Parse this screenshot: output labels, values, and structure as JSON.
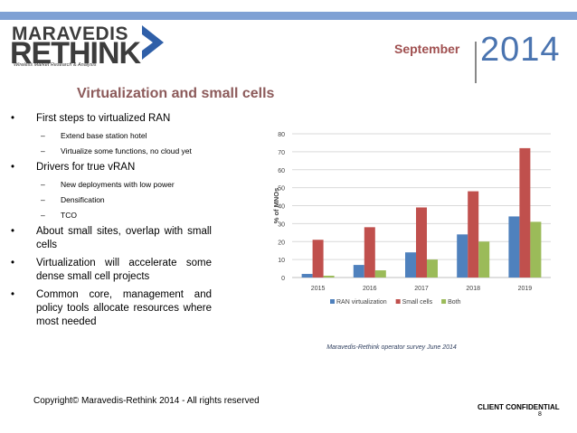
{
  "header": {
    "logo_line1": "MARAVEDIS",
    "logo_line2": "RETHINK",
    "logo_tagline": "Wireless Market Research & Analysis",
    "month": "September",
    "year": "2014"
  },
  "slide_title": "Virtualization and small cells",
  "bullets": [
    {
      "text": "First steps to virtualized RAN",
      "subs": [
        "Extend base station hotel",
        "Virtualize some functions, no cloud yet"
      ]
    },
    {
      "text": "Drivers for true vRAN",
      "subs": [
        "New deployments with low power",
        "Densification",
        "TCO"
      ]
    },
    {
      "text": "About small sites, overlap with small cells",
      "subs": []
    },
    {
      "text": "Virtualization will accelerate some dense small cell projects",
      "subs": []
    },
    {
      "text": "Common core, management and policy tools allocate resources where most needed",
      "subs": []
    }
  ],
  "chart_data": {
    "type": "bar",
    "categories": [
      "2015",
      "2016",
      "2017",
      "2018",
      "2019"
    ],
    "series": [
      {
        "name": "RAN virtualization",
        "color": "#4f81bd",
        "values": [
          2,
          7,
          14,
          24,
          34
        ]
      },
      {
        "name": "Small cells",
        "color": "#c0504d",
        "values": [
          21,
          28,
          39,
          48,
          72
        ]
      },
      {
        "name": "Both",
        "color": "#9bbb59",
        "values": [
          1,
          4,
          10,
          20,
          31
        ]
      }
    ],
    "ylabel": "% of MNOs",
    "ylim": [
      0,
      80
    ],
    "yticks": [
      "0",
      "10",
      "20",
      "30",
      "40",
      "50",
      "60",
      "70",
      "80"
    ],
    "caption": "Maravedis-Rethink operator survey June 2014"
  },
  "footer": {
    "copyright": "Copyright© Maravedis-Rethink 2014 - All rights reserved",
    "confidential": "CLIENT CONFIDENTIAL",
    "page": "8"
  }
}
